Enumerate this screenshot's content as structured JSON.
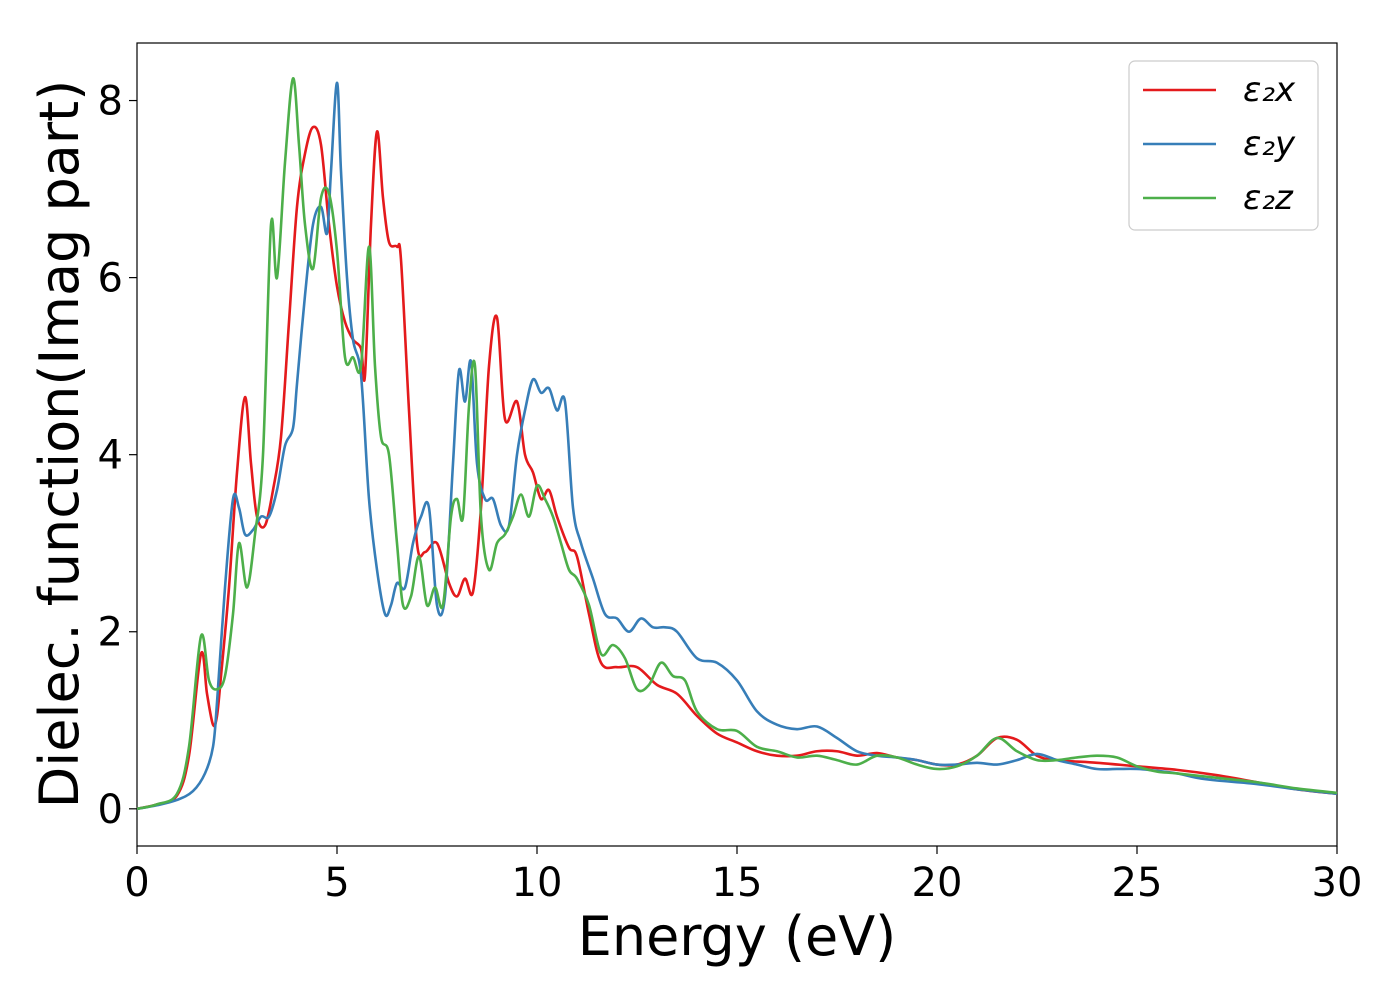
{
  "chart_data": {
    "type": "line",
    "title": "",
    "xlabel": "Energy (eV)",
    "ylabel": "Dielec. function(Imag part)",
    "xlim": [
      0,
      30
    ],
    "ylim": [
      -0.42,
      8.65
    ],
    "xticks": [
      0,
      5,
      10,
      15,
      20,
      25,
      30
    ],
    "yticks": [
      0,
      2,
      4,
      6,
      8
    ],
    "grid": false,
    "legend_position": "top-right",
    "series": [
      {
        "name": "ε₂x",
        "color": "#e41a1c",
        "x": [
          0,
          0.5,
          1.0,
          1.3,
          1.6,
          1.75,
          1.9,
          2.0,
          2.1,
          2.3,
          2.5,
          2.7,
          2.85,
          3.0,
          3.2,
          3.4,
          3.6,
          3.8,
          4.0,
          4.2,
          4.4,
          4.6,
          4.8,
          5.0,
          5.2,
          5.4,
          5.6,
          5.7,
          5.85,
          6.0,
          6.15,
          6.3,
          6.5,
          6.6,
          6.8,
          7.0,
          7.2,
          7.5,
          7.8,
          8.0,
          8.2,
          8.4,
          8.6,
          8.8,
          9.0,
          9.2,
          9.5,
          9.7,
          9.9,
          10.1,
          10.3,
          10.5,
          10.8,
          11.0,
          11.3,
          11.6,
          12.0,
          12.5,
          13.0,
          13.5,
          14.0,
          14.5,
          15.0,
          15.5,
          16.0,
          16.5,
          17.0,
          17.5,
          18.0,
          18.5,
          19.0,
          19.5,
          20.0,
          20.5,
          21.0,
          21.5,
          22.0,
          22.5,
          23.0,
          24.0,
          25.0,
          26.0,
          27.0,
          28.0,
          29.0,
          30.0
        ],
        "y": [
          0.0,
          0.05,
          0.15,
          0.6,
          1.75,
          1.3,
          0.95,
          1.05,
          1.5,
          2.5,
          3.8,
          4.65,
          3.9,
          3.3,
          3.2,
          3.6,
          4.2,
          5.5,
          6.8,
          7.4,
          7.7,
          7.5,
          6.6,
          5.9,
          5.5,
          5.3,
          5.2,
          4.9,
          6.6,
          7.65,
          6.9,
          6.4,
          6.35,
          6.2,
          4.5,
          3.0,
          2.9,
          3.0,
          2.55,
          2.4,
          2.6,
          2.45,
          3.4,
          5.0,
          5.55,
          4.4,
          4.6,
          4.0,
          3.8,
          3.5,
          3.6,
          3.3,
          2.95,
          2.85,
          2.2,
          1.65,
          1.6,
          1.6,
          1.4,
          1.3,
          1.05,
          0.85,
          0.75,
          0.65,
          0.6,
          0.6,
          0.65,
          0.65,
          0.6,
          0.63,
          0.58,
          0.55,
          0.5,
          0.5,
          0.6,
          0.8,
          0.78,
          0.6,
          0.55,
          0.52,
          0.48,
          0.44,
          0.38,
          0.3,
          0.22,
          0.17
        ]
      },
      {
        "name": "ε₂y",
        "color": "#377eb8",
        "x": [
          0,
          0.5,
          1.0,
          1.4,
          1.7,
          1.9,
          2.0,
          2.2,
          2.4,
          2.55,
          2.7,
          2.9,
          3.1,
          3.3,
          3.5,
          3.7,
          3.9,
          4.0,
          4.2,
          4.4,
          4.6,
          4.75,
          4.85,
          5.0,
          5.1,
          5.25,
          5.4,
          5.6,
          5.8,
          6.0,
          6.2,
          6.35,
          6.5,
          6.7,
          6.9,
          7.1,
          7.3,
          7.5,
          7.7,
          7.9,
          8.05,
          8.2,
          8.35,
          8.5,
          8.7,
          8.9,
          9.1,
          9.3,
          9.5,
          9.7,
          9.9,
          10.1,
          10.3,
          10.5,
          10.7,
          10.9,
          11.1,
          11.4,
          11.7,
          12.0,
          12.3,
          12.6,
          12.9,
          13.2,
          13.5,
          14.0,
          14.5,
          15.0,
          15.5,
          16.0,
          16.5,
          17.0,
          17.5,
          18.0,
          18.5,
          19.0,
          19.5,
          20.0,
          20.5,
          21.0,
          21.5,
          22.0,
          22.5,
          23.0,
          23.5,
          24.0,
          24.5,
          25.0,
          25.5,
          26.0,
          26.5,
          27.0,
          28.0,
          29.0,
          30.0
        ],
        "y": [
          0.0,
          0.04,
          0.1,
          0.2,
          0.4,
          0.7,
          1.2,
          2.5,
          3.5,
          3.4,
          3.1,
          3.15,
          3.3,
          3.3,
          3.6,
          4.1,
          4.3,
          4.8,
          5.8,
          6.6,
          6.8,
          6.5,
          7.2,
          8.2,
          7.2,
          6.0,
          5.3,
          4.9,
          3.5,
          2.7,
          2.2,
          2.3,
          2.55,
          2.5,
          3.0,
          3.3,
          3.4,
          2.3,
          2.4,
          3.9,
          4.95,
          4.6,
          5.05,
          3.9,
          3.5,
          3.5,
          3.2,
          3.2,
          4.0,
          4.5,
          4.85,
          4.7,
          4.75,
          4.5,
          4.6,
          3.4,
          3.0,
          2.6,
          2.2,
          2.15,
          2.0,
          2.15,
          2.05,
          2.05,
          2.0,
          1.7,
          1.65,
          1.45,
          1.1,
          0.95,
          0.9,
          0.93,
          0.8,
          0.65,
          0.6,
          0.58,
          0.55,
          0.5,
          0.5,
          0.52,
          0.5,
          0.55,
          0.62,
          0.55,
          0.5,
          0.45,
          0.45,
          0.45,
          0.43,
          0.4,
          0.35,
          0.32,
          0.28,
          0.22,
          0.17
        ]
      },
      {
        "name": "ε₂z",
        "color": "#4daf4a",
        "x": [
          0,
          0.5,
          1.0,
          1.3,
          1.6,
          1.8,
          2.0,
          2.2,
          2.4,
          2.55,
          2.75,
          2.95,
          3.15,
          3.35,
          3.5,
          3.7,
          3.9,
          4.05,
          4.2,
          4.4,
          4.6,
          4.8,
          5.0,
          5.2,
          5.4,
          5.6,
          5.8,
          5.95,
          6.1,
          6.3,
          6.5,
          6.65,
          6.85,
          7.05,
          7.25,
          7.45,
          7.65,
          7.85,
          8.0,
          8.15,
          8.3,
          8.45,
          8.6,
          8.8,
          9.0,
          9.2,
          9.4,
          9.6,
          9.8,
          10.0,
          10.2,
          10.4,
          10.6,
          10.8,
          11.0,
          11.3,
          11.6,
          11.9,
          12.2,
          12.5,
          12.8,
          13.1,
          13.4,
          13.7,
          14.0,
          14.5,
          15.0,
          15.5,
          16.0,
          16.5,
          17.0,
          17.5,
          18.0,
          18.5,
          19.0,
          19.5,
          20.0,
          20.5,
          21.0,
          21.5,
          22.0,
          22.5,
          23.0,
          23.5,
          24.0,
          24.5,
          25.0,
          25.5,
          26.0,
          27.0,
          28.0,
          29.0,
          30.0
        ],
        "y": [
          0.0,
          0.05,
          0.17,
          0.7,
          1.95,
          1.45,
          1.35,
          1.5,
          2.2,
          3.0,
          2.5,
          3.1,
          4.0,
          6.6,
          6.0,
          7.3,
          8.25,
          7.5,
          6.6,
          6.1,
          6.9,
          6.95,
          6.3,
          5.1,
          5.1,
          5.0,
          6.35,
          5.0,
          4.2,
          4.0,
          3.0,
          2.3,
          2.4,
          2.85,
          2.3,
          2.5,
          2.3,
          3.3,
          3.5,
          3.3,
          4.55,
          5.0,
          3.3,
          2.7,
          3.0,
          3.1,
          3.3,
          3.55,
          3.3,
          3.65,
          3.5,
          3.3,
          3.0,
          2.7,
          2.6,
          2.3,
          1.75,
          1.85,
          1.7,
          1.35,
          1.4,
          1.65,
          1.5,
          1.45,
          1.1,
          0.9,
          0.88,
          0.7,
          0.65,
          0.58,
          0.6,
          0.55,
          0.5,
          0.6,
          0.58,
          0.5,
          0.45,
          0.48,
          0.6,
          0.8,
          0.65,
          0.55,
          0.55,
          0.58,
          0.6,
          0.58,
          0.48,
          0.42,
          0.4,
          0.35,
          0.3,
          0.23,
          0.18
        ]
      }
    ]
  }
}
